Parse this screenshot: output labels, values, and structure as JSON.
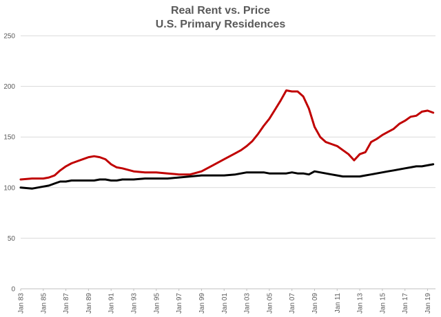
{
  "chart_data": {
    "type": "line",
    "title": "Real Rent vs. Price",
    "subtitle": "U.S. Primary Residences",
    "xlabel": "",
    "ylabel": "",
    "ylim": [
      0,
      250
    ],
    "yticks": [
      0,
      50,
      100,
      150,
      200,
      250
    ],
    "xticks": [
      "Jan 83",
      "Jan 85",
      "Jan 87",
      "Jan 89",
      "Jan 91",
      "Jan 93",
      "Jan 95",
      "Jan 97",
      "Jan 99",
      "Jan 01",
      "Jan 03",
      "Jan 05",
      "Jan 07",
      "Jan 09",
      "Jan 11",
      "Jan 13",
      "Jan 15",
      "Jan 17",
      "Jan 19"
    ],
    "grid": true,
    "legend": "none",
    "x": [
      1983.0,
      1984.0,
      1985.0,
      1985.5,
      1986.0,
      1986.5,
      1987.0,
      1987.5,
      1988.0,
      1988.5,
      1989.0,
      1989.5,
      1990.0,
      1990.5,
      1991.0,
      1991.5,
      1992.0,
      1993.0,
      1994.0,
      1995.0,
      1996.0,
      1997.0,
      1998.0,
      1999.0,
      2000.0,
      2001.0,
      2002.0,
      2002.5,
      2003.0,
      2003.5,
      2004.0,
      2004.5,
      2005.0,
      2005.5,
      2006.0,
      2006.5,
      2007.0,
      2007.5,
      2008.0,
      2008.5,
      2009.0,
      2009.5,
      2010.0,
      2010.5,
      2011.0,
      2011.5,
      2012.0,
      2012.5,
      2013.0,
      2013.5,
      2014.0,
      2014.5,
      2015.0,
      2015.5,
      2016.0,
      2016.5,
      2017.0,
      2017.5,
      2018.0,
      2018.5,
      2019.0,
      2019.5
    ],
    "series": [
      {
        "color": "#c00000",
        "values": [
          108,
          109,
          109,
          110,
          112,
          117,
          121,
          124,
          126,
          128,
          130,
          131,
          130,
          128,
          123,
          120,
          119,
          116,
          115,
          115,
          114,
          113,
          113,
          116,
          122,
          128,
          134,
          137,
          141,
          146,
          153,
          161,
          168,
          177,
          186,
          196,
          195,
          195,
          190,
          178,
          160,
          150,
          145,
          143,
          141,
          137,
          133,
          127,
          133,
          135,
          145,
          148,
          152,
          155,
          158,
          163,
          166,
          170,
          171,
          175,
          176,
          174
        ]
      },
      {
        "color": "#000000",
        "values": [
          100,
          99,
          101,
          102,
          104,
          106,
          106,
          107,
          107,
          107,
          107,
          107,
          108,
          108,
          107,
          107,
          108,
          108,
          109,
          109,
          109,
          110,
          111,
          112,
          112,
          112,
          113,
          114,
          115,
          115,
          115,
          115,
          114,
          114,
          114,
          114,
          115,
          114,
          114,
          113,
          116,
          115,
          114,
          113,
          112,
          111,
          111,
          111,
          111,
          112,
          113,
          114,
          115,
          116,
          117,
          118,
          119,
          120,
          121,
          121,
          122,
          123
        ]
      }
    ]
  }
}
